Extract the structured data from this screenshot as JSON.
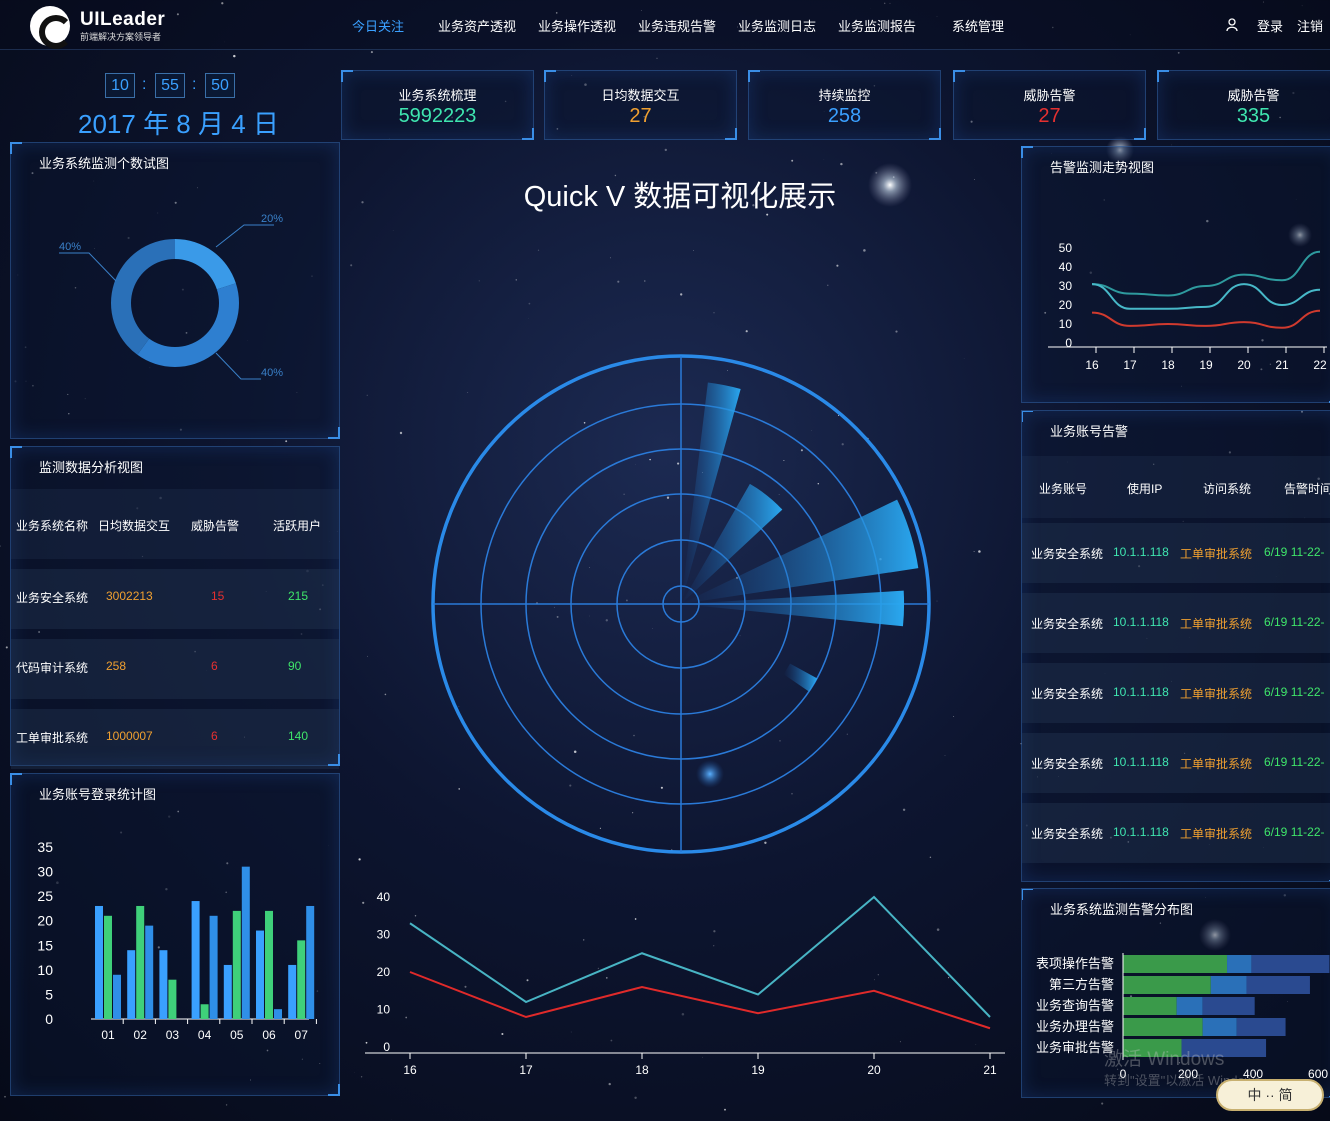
{
  "header": {
    "logo_text": "UILeader",
    "logo_sub": "前端解决方案领导者",
    "nav": [
      {
        "label": "今日关注",
        "active": true
      },
      {
        "label": "业务资产透视"
      },
      {
        "label": "业务操作透视"
      },
      {
        "label": "业务违规告警"
      },
      {
        "label": "业务监测日志"
      },
      {
        "label": "业务监测报告"
      },
      {
        "label": "系统管理"
      }
    ],
    "login": "登录",
    "logout": "注销"
  },
  "clock": {
    "hh": "10",
    "mm": "55",
    "ss": "50",
    "sep": ":",
    "date": "2017 年 8 月 4 日"
  },
  "stats": [
    {
      "label": "业务系统梳理",
      "value": "5992223",
      "color": "#3fe6b0"
    },
    {
      "label": "日均数据交互",
      "value": "27",
      "color": "#f0a030"
    },
    {
      "label": "持续监控",
      "value": "258",
      "color": "#3aa0ff"
    },
    {
      "label": "威胁告警",
      "value": "27",
      "color": "#e53030"
    },
    {
      "label": "威胁告警",
      "value": "335",
      "color": "#3fe6b0"
    }
  ],
  "main_title": "Quick V 数据可视化展示",
  "table": {
    "title": "监测数据分析视图",
    "headers": [
      "业务系统名称",
      "日均数据交互",
      "威胁告警",
      "活跃用户"
    ],
    "rows": [
      [
        "业务安全系统",
        "3002213",
        "15",
        "215"
      ],
      [
        "代码审计系统",
        "258",
        "6",
        "90"
      ],
      [
        "工单审批系统",
        "1000007",
        "6",
        "140"
      ]
    ],
    "colors": [
      "#ffffff",
      "#f0a030",
      "#e53030",
      "#3fe66a"
    ]
  },
  "accounts": {
    "title": "业务账号告警",
    "headers": [
      "业务账号",
      "使用IP",
      "访问系统",
      "告警时间"
    ],
    "rows": [
      [
        "业务安全系统",
        "10.1.1.118",
        "工单审批系统",
        "6/19 11-22-"
      ],
      [
        "业务安全系统",
        "10.1.1.118",
        "工单审批系统",
        "6/19 11-22-"
      ],
      [
        "业务安全系统",
        "10.1.1.118",
        "工单审批系统",
        "6/19 11-22-"
      ],
      [
        "业务安全系统",
        "10.1.1.118",
        "工单审批系统",
        "6/19 11-22-"
      ],
      [
        "业务安全系统",
        "10.1.1.118",
        "工单审批系统",
        "6/19 11-22-"
      ]
    ],
    "colors": [
      "#ffffff",
      "#3fe6b0",
      "#f0a030",
      "#3fe66a"
    ]
  },
  "watermark": {
    "line1": "激活 Windows",
    "line2": "转到\"设置\"以激活 Windows。"
  },
  "ime": "中 ·· 简",
  "chart_data": [
    {
      "id": "donut",
      "type": "pie",
      "title": "业务系统监测个数试图",
      "labels": [
        "20%",
        "40%",
        "40%"
      ],
      "values": [
        20,
        40,
        40
      ],
      "colors": [
        "#3a9ae8",
        "#2e7fd0",
        "#2a70b8"
      ]
    },
    {
      "id": "bars",
      "type": "bar",
      "title": "业务账号登录统计图",
      "categories": [
        "01",
        "02",
        "03",
        "04",
        "05",
        "06",
        "07"
      ],
      "yticks": [
        0,
        5,
        10,
        15,
        20,
        25,
        30,
        35
      ],
      "ylim": [
        0,
        35
      ],
      "series": [
        {
          "values": [
            23,
            14,
            14,
            24,
            11,
            18,
            11
          ],
          "color": "#3aa0ff"
        },
        {
          "values": [
            21,
            23,
            8,
            3,
            22,
            22,
            16
          ],
          "color": "#3fd07a"
        },
        {
          "values": [
            9,
            19,
            0,
            21,
            31,
            2,
            23
          ],
          "color": "#2f8fe8"
        }
      ],
      "colors": [
        "#3aa0ff",
        "#3fd07a",
        "#2f8fe8"
      ]
    },
    {
      "id": "trend",
      "type": "line",
      "title": "告警监测走势视图",
      "x": [
        "16",
        "17",
        "18",
        "19",
        "20",
        "21",
        "22"
      ],
      "yticks": [
        0,
        10,
        20,
        30,
        40,
        50
      ],
      "ylim": [
        0,
        50
      ],
      "series": [
        {
          "values": [
            31,
            26,
            25,
            30,
            36,
            33,
            48
          ],
          "color": "#2e9a9e"
        },
        {
          "values": [
            31,
            18,
            18,
            19,
            31,
            20,
            28
          ],
          "color": "#47b8c8"
        },
        {
          "values": [
            16,
            9,
            10,
            9,
            11,
            8,
            17
          ],
          "color": "#d03a2e"
        }
      ]
    },
    {
      "id": "radar",
      "type": "bar",
      "subtype": "polar",
      "values": [
        12,
        7,
        13,
        12,
        8,
        9
      ]
    },
    {
      "id": "bottom_line",
      "type": "line",
      "x": [
        "16",
        "17",
        "18",
        "19",
        "20",
        "21"
      ],
      "yticks": [
        0,
        10,
        20,
        30,
        40
      ],
      "ylim": [
        0,
        40
      ],
      "series": [
        {
          "values": [
            33,
            12,
            25,
            14,
            40,
            8
          ],
          "color": "#48b4c4"
        },
        {
          "values": [
            20,
            8,
            16,
            9,
            15,
            5
          ],
          "color": "#e02a2a"
        }
      ]
    },
    {
      "id": "hbar",
      "type": "bar",
      "orientation": "horizontal",
      "title": "业务系统监测告警分布图",
      "categories": [
        "表项操作告警",
        "第三方告警",
        "业务查询告警",
        "业务办理告警",
        "业务审批告警"
      ],
      "xticks": [
        "0",
        "200",
        "400",
        "600"
      ],
      "xlim": [
        0,
        800
      ],
      "series": [
        {
          "values": [
            320,
            270,
            165,
            245,
            180
          ],
          "color": "#3a9a4a"
        },
        {
          "values": [
            75,
            110,
            80,
            105,
            0
          ],
          "color": "#2a70b8"
        },
        {
          "values": [
            240,
            195,
            160,
            150,
            260
          ],
          "color": "#2a4a90"
        }
      ]
    }
  ]
}
